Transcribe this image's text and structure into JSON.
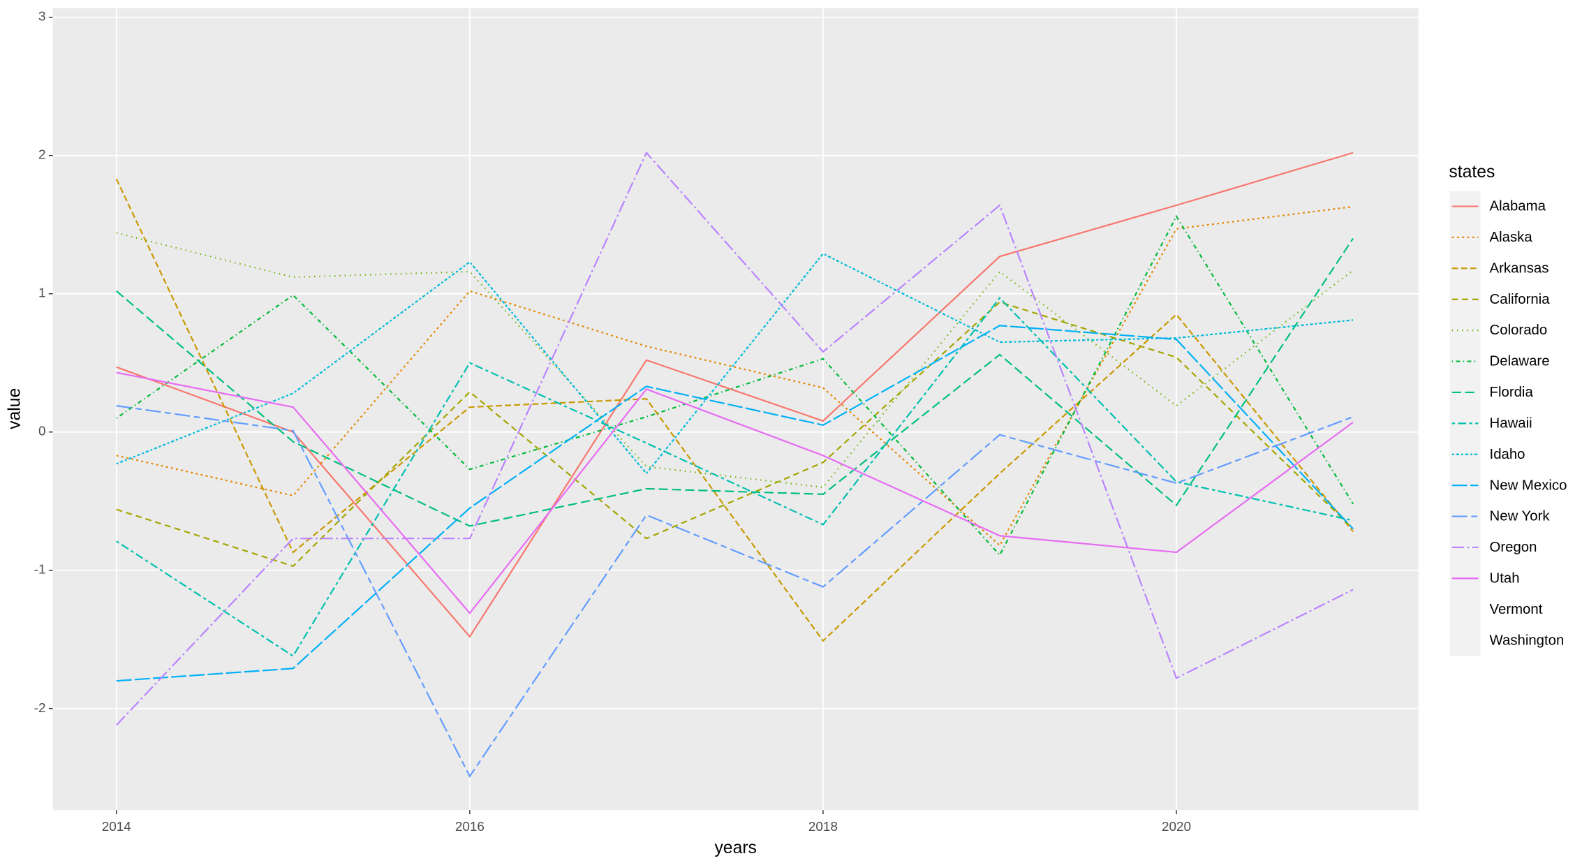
{
  "chart_data": {
    "type": "line",
    "x_label": "years",
    "y_label": "value",
    "legend_title": "states",
    "x": [
      2014,
      2015,
      2016,
      2017,
      2018,
      2019,
      2020,
      2021
    ],
    "xlim": [
      2013.64,
      2021.37
    ],
    "xticks": [
      2014,
      2016,
      2018,
      2020
    ],
    "ylim": [
      -2.735,
      3.066
    ],
    "yticks": [
      -2,
      -1,
      0,
      1,
      2,
      3
    ],
    "grid": true,
    "legend": "right",
    "series": [
      {
        "name": "Alabama",
        "color": "#F8766D",
        "linetype": "",
        "values": [
          0.47,
          0.0,
          -1.48,
          0.52,
          0.08,
          1.27,
          1.64,
          2.02
        ]
      },
      {
        "name": "Alaska",
        "color": "#E58700",
        "linetype": "2 3",
        "values": [
          -0.17,
          -0.46,
          1.02,
          0.62,
          0.32,
          -0.82,
          1.47,
          1.63
        ]
      },
      {
        "name": "Arkansas",
        "color": "#C99800",
        "linetype": "6 3",
        "values": [
          1.83,
          -0.87,
          0.18,
          0.24,
          -1.51,
          -0.3,
          0.85,
          -0.72
        ]
      },
      {
        "name": "California",
        "color": "#A3A500",
        "linetype": "6 4",
        "values": [
          -0.56,
          -0.97,
          0.29,
          -0.77,
          -0.22,
          0.94,
          0.54,
          -0.7
        ]
      },
      {
        "name": "Colorado",
        "color": "#6BB100",
        "linetype": "1 4",
        "values": [
          1.44,
          1.12,
          1.16,
          -0.25,
          -0.4,
          1.16,
          0.19,
          1.17
        ]
      },
      {
        "name": "Delaware",
        "color": "#00BA38",
        "linetype": "1 3 4 3",
        "values": [
          0.1,
          0.99,
          -0.27,
          0.11,
          0.53,
          -0.89,
          1.56,
          -0.52
        ]
      },
      {
        "name": "Flordia",
        "color": "#00BF7D",
        "linetype": "9 4",
        "values": [
          1.02,
          -0.07,
          -0.68,
          -0.41,
          -0.45,
          0.56,
          -0.53,
          1.4
        ]
      },
      {
        "name": "Hawaii",
        "color": "#00C0AF",
        "linetype": "3 3 8 3",
        "values": [
          -0.79,
          -1.62,
          0.5,
          -0.08,
          -0.67,
          0.97,
          -0.36,
          -0.64
        ]
      },
      {
        "name": "Idaho",
        "color": "#00BCD8",
        "linetype": "2 2 3 2",
        "values": [
          -0.23,
          0.28,
          1.23,
          -0.3,
          1.29,
          0.65,
          0.68,
          0.81
        ]
      },
      {
        "name": "New Mexico",
        "color": "#00B0F6",
        "linetype": "15 3",
        "values": [
          -1.8,
          -1.71,
          -0.55,
          0.33,
          0.05,
          0.77,
          0.67,
          -0.7
        ]
      },
      {
        "name": "New York",
        "color": "#619CFF",
        "linetype": "15 4 6 4",
        "values": [
          0.19,
          0.01,
          -2.49,
          -0.6,
          -1.12,
          -0.02,
          -0.37,
          0.11
        ]
      },
      {
        "name": "Oregon",
        "color": "#B983FF",
        "linetype": "12 3 2 3",
        "values": [
          -2.12,
          -0.77,
          -0.77,
          2.02,
          0.58,
          1.64,
          -1.78,
          -1.14
        ]
      },
      {
        "name": "Utah",
        "color": "#E76BF3",
        "linetype": "",
        "values": [
          0.43,
          0.18,
          -1.31,
          0.31,
          -0.17,
          -0.75,
          -0.87,
          0.07
        ]
      },
      {
        "name": "Vermont",
        "values": [
          null,
          null,
          null,
          null,
          null,
          null,
          null,
          null
        ]
      },
      {
        "name": "Washington",
        "values": [
          null,
          null,
          null,
          null,
          null,
          null,
          null,
          null
        ]
      }
    ]
  }
}
